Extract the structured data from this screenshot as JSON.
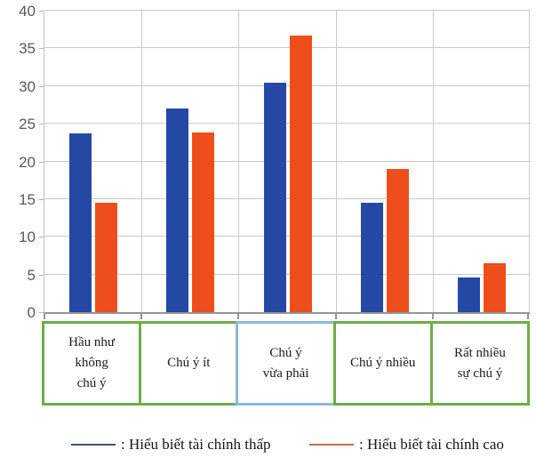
{
  "chart_data": {
    "type": "bar",
    "title": "",
    "xlabel": "",
    "ylabel": "",
    "categories": [
      "Hầu như không chú ý",
      "Chú ý ít",
      "Chú ý vừa phải",
      "Chú ý nhiều",
      "Rất nhiều sự chú ý"
    ],
    "category_label_lines": [
      [
        "Hầu như",
        "không",
        "chú ý"
      ],
      [
        "Chú ý ít"
      ],
      [
        "Chú ý",
        "vừa phải"
      ],
      [
        "Chú ý nhiều"
      ],
      [
        "Rất nhiều",
        "sự chú ý"
      ]
    ],
    "category_box_border_colors": [
      "#6FAC46",
      "#6FAC46",
      "#8FB8DC",
      "#6FAC46",
      "#6FAC46"
    ],
    "series": [
      {
        "name": "Hiểu biết tài chính thấp",
        "color": "#2548A4",
        "values": [
          23.7,
          27.0,
          30.5,
          14.5,
          4.6
        ]
      },
      {
        "name": "Hiểu biết tài chính cao",
        "color": "#EE4E1B",
        "values": [
          14.5,
          23.8,
          36.7,
          19.0,
          6.5
        ]
      }
    ],
    "ylim": [
      0,
      40
    ],
    "yticks": [
      0,
      5,
      10,
      15,
      20,
      25,
      30,
      35,
      40
    ],
    "grid": true,
    "legend_position": "bottom",
    "legend": [
      {
        "label": ": Hiểu biết tài chính thấp",
        "line_color": "#44546A"
      },
      {
        "label": ": Hiểu biết tài chính cao",
        "line_color": "#BE6E4E"
      }
    ]
  }
}
